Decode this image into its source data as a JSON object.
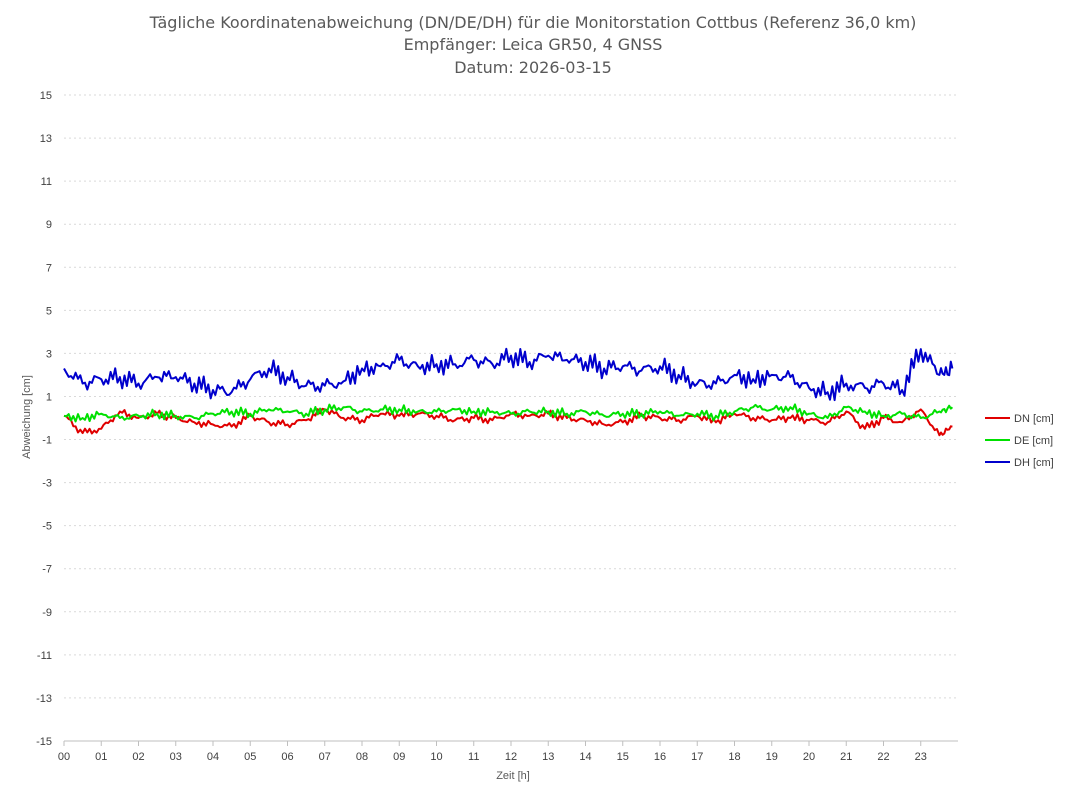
{
  "chart_data": {
    "type": "line",
    "title_lines": [
      "Tägliche Koordinatenabweichung (DN/DE/DH) für die Monitorstation Cottbus (Referenz 36,0 km)",
      "Empfänger: Leica GR50, 4 GNSS",
      "Datum: 2026-03-15"
    ],
    "xlabel": "Zeit [h]",
    "ylabel": "Abweichung [cm]",
    "xlim": [
      0,
      24
    ],
    "ylim": [
      -15,
      15
    ],
    "x_tick_labels": [
      "00",
      "01",
      "02",
      "03",
      "04",
      "05",
      "06",
      "07",
      "08",
      "09",
      "10",
      "11",
      "12",
      "13",
      "14",
      "15",
      "16",
      "17",
      "18",
      "19",
      "20",
      "21",
      "22",
      "23"
    ],
    "y_ticks": [
      15,
      13,
      11,
      9,
      7,
      5,
      3,
      1,
      -1,
      -3,
      -5,
      -7,
      -9,
      -11,
      -13,
      -15
    ],
    "grid": true,
    "legend_position": "right",
    "x": [
      0,
      0.5,
      1,
      1.5,
      2,
      2.5,
      3,
      3.5,
      4,
      4.5,
      5,
      5.5,
      6,
      6.5,
      7,
      7.5,
      8,
      8.5,
      9,
      9.5,
      10,
      10.5,
      11,
      11.5,
      12,
      12.5,
      13,
      13.5,
      14,
      14.5,
      15,
      15.5,
      16,
      16.5,
      17,
      17.5,
      18,
      18.5,
      19,
      19.5,
      20,
      20.5,
      21,
      21.5,
      22,
      22.5,
      23,
      23.5,
      23.85
    ],
    "series": [
      {
        "name": "DN [cm]",
        "color": "#e00000",
        "values": [
          0.1,
          -0.7,
          -0.5,
          0.3,
          0.0,
          0.2,
          0.0,
          -0.2,
          -0.3,
          -0.4,
          0.1,
          -0.2,
          -0.3,
          -0.1,
          0.4,
          0.0,
          -0.1,
          0.2,
          0.1,
          0.2,
          0.1,
          -0.1,
          0.0,
          -0.1,
          0.2,
          0.1,
          0.2,
          0.0,
          -0.1,
          -0.3,
          -0.2,
          0.1,
          0.0,
          -0.1,
          0.1,
          -0.2,
          0.2,
          0.0,
          -0.1,
          0.0,
          -0.1,
          -0.2,
          0.3,
          -0.5,
          0.0,
          -0.2,
          0.4,
          -0.8,
          -0.4
        ]
      },
      {
        "name": "DE [cm]",
        "color": "#00e000",
        "values": [
          0.1,
          0.0,
          0.2,
          0.0,
          0.1,
          0.2,
          0.1,
          0.0,
          0.2,
          0.3,
          0.2,
          0.4,
          0.3,
          0.2,
          0.4,
          0.5,
          0.3,
          0.4,
          0.4,
          0.3,
          0.3,
          0.4,
          0.3,
          0.3,
          0.2,
          0.3,
          0.3,
          0.2,
          0.3,
          0.1,
          0.2,
          0.2,
          0.3,
          0.1,
          0.2,
          0.1,
          0.3,
          0.5,
          0.4,
          0.5,
          0.2,
          0.0,
          0.5,
          0.3,
          0.1,
          0.2,
          0.0,
          0.3,
          0.5
        ]
      },
      {
        "name": "DH [cm]",
        "color": "#0000cc",
        "values": [
          2.3,
          1.6,
          1.8,
          1.9,
          1.6,
          1.9,
          1.9,
          1.6,
          1.3,
          1.2,
          1.8,
          2.3,
          1.9,
          1.5,
          1.5,
          1.7,
          2.3,
          2.4,
          2.7,
          2.4,
          2.5,
          2.5,
          2.7,
          2.5,
          2.9,
          2.6,
          2.9,
          2.7,
          2.6,
          2.3,
          2.4,
          2.2,
          2.4,
          2.0,
          1.6,
          1.6,
          2.0,
          1.8,
          2.0,
          1.9,
          1.4,
          1.2,
          1.6,
          1.4,
          1.6,
          1.3,
          3.2,
          2.0,
          2.3
        ]
      }
    ]
  }
}
